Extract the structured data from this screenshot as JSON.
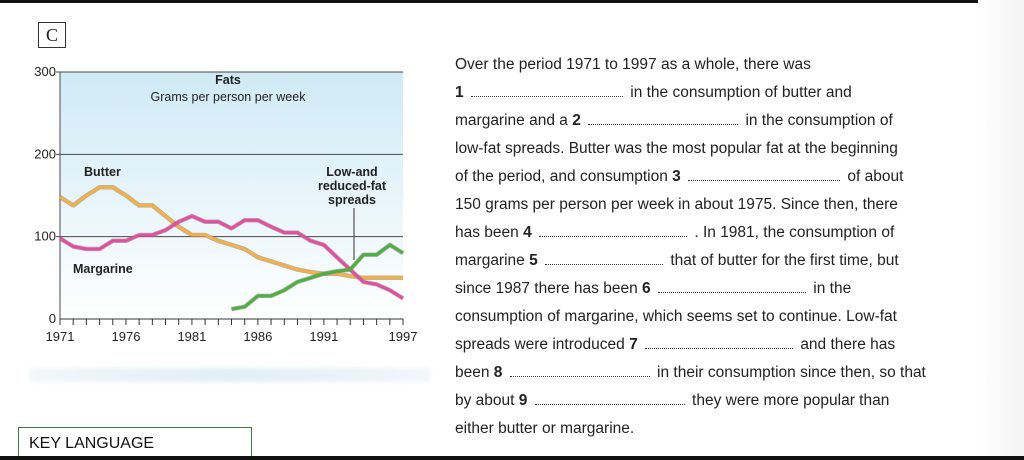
{
  "section_letter": "C",
  "chart_data": {
    "type": "line",
    "title": "Fats",
    "subtitle": "Grams per person per week",
    "xlabel": "",
    "ylabel": "",
    "xlim": [
      1971,
      1997
    ],
    "ylim": [
      0,
      300
    ],
    "x_ticks": [
      1971,
      1976,
      1981,
      1986,
      1991,
      1997
    ],
    "y_ticks": [
      0,
      100,
      200,
      300
    ],
    "grid": "horizontal lines at 100 and 200",
    "series": [
      {
        "name": "Butter",
        "color": "#f5b041",
        "x": [
          1971,
          1972,
          1973,
          1974,
          1975,
          1976,
          1977,
          1978,
          1979,
          1980,
          1981,
          1982,
          1983,
          1984,
          1985,
          1986,
          1987,
          1988,
          1989,
          1990,
          1991,
          1992,
          1993,
          1994,
          1995,
          1996,
          1997
        ],
        "y": [
          148,
          138,
          150,
          160,
          160,
          150,
          138,
          138,
          125,
          112,
          102,
          102,
          95,
          90,
          85,
          75,
          70,
          65,
          60,
          57,
          55,
          55,
          52,
          50,
          50,
          50,
          50
        ]
      },
      {
        "name": "Margarine",
        "color": "#e64ca0",
        "x": [
          1971,
          1972,
          1973,
          1974,
          1975,
          1976,
          1977,
          1978,
          1979,
          1980,
          1981,
          1982,
          1983,
          1984,
          1985,
          1986,
          1987,
          1988,
          1989,
          1990,
          1991,
          1992,
          1993,
          1994,
          1995,
          1996,
          1997
        ],
        "y": [
          98,
          88,
          85,
          85,
          95,
          95,
          102,
          102,
          108,
          118,
          125,
          118,
          118,
          110,
          120,
          120,
          112,
          105,
          105,
          95,
          90,
          75,
          60,
          45,
          42,
          35,
          25
        ]
      },
      {
        "name": "Low-and reduced-fat spreads",
        "color": "#4caf3f",
        "x": [
          1984,
          1985,
          1986,
          1987,
          1988,
          1989,
          1990,
          1991,
          1992,
          1993,
          1994,
          1995,
          1996,
          1997
        ],
        "y": [
          12,
          15,
          28,
          28,
          35,
          45,
          50,
          55,
          58,
          60,
          78,
          78,
          90,
          80
        ]
      }
    ],
    "labels": {
      "butter": "Butter",
      "margarine": "Margarine",
      "spreads_line1": "Low-and",
      "spreads_line2": "reduced-fat",
      "spreads_line3": "spreads"
    },
    "colors": {
      "plot_bg_top": "#cfeaf6",
      "plot_bg_bottom": "#ffffff"
    }
  },
  "passage": {
    "l1": "Over the period 1971 to 1997 as a whole, there was",
    "n1": "1",
    "l2": "in the consumption of butter and",
    "l3a": "margarine and a",
    "n2": "2",
    "l3b": "in the consumption of",
    "l4": "low-fat spreads. Butter was the most popular fat at the beginning",
    "l5a": "of the period, and consumption",
    "n3": "3",
    "l5b": "of about",
    "l6": "150 grams per person per week in about 1975. Since then, there",
    "l7a": "has been",
    "n4": "4",
    "l7b": ". In 1981, the consumption of",
    "l8a": "margarine",
    "n5": "5",
    "l8b": "that of butter for the first time, but",
    "l9a": "since 1987 there has been",
    "n6": "6",
    "l9b": "in the",
    "l10": "consumption of margarine, which seems set to continue. Low-fat",
    "l11a": "spreads were introduced",
    "n7": "7",
    "l11b": "and there has",
    "l12a": "been",
    "n8": "8",
    "l12b": "in their consumption since then, so that",
    "l13a": "by about",
    "n9": "9",
    "l13b": "they were more popular than",
    "l14": "either butter or margarine."
  },
  "key_language": "KEY LANGUAGE"
}
